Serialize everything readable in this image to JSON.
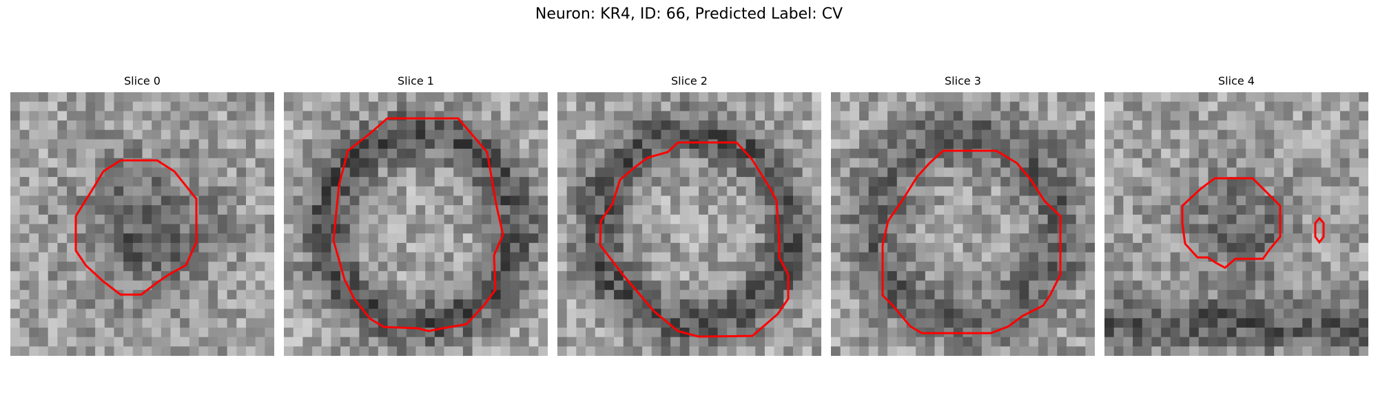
{
  "figure": {
    "suptitle": "Neuron: KR4, ID: 66, Predicted Label: CV",
    "contour_color": "#ff0000",
    "colormap": "gray"
  },
  "slices": [
    {
      "title": "Slice 0"
    },
    {
      "title": "Slice 1"
    },
    {
      "title": "Slice 2"
    },
    {
      "title": "Slice 3"
    },
    {
      "title": "Slice 4"
    }
  ]
}
